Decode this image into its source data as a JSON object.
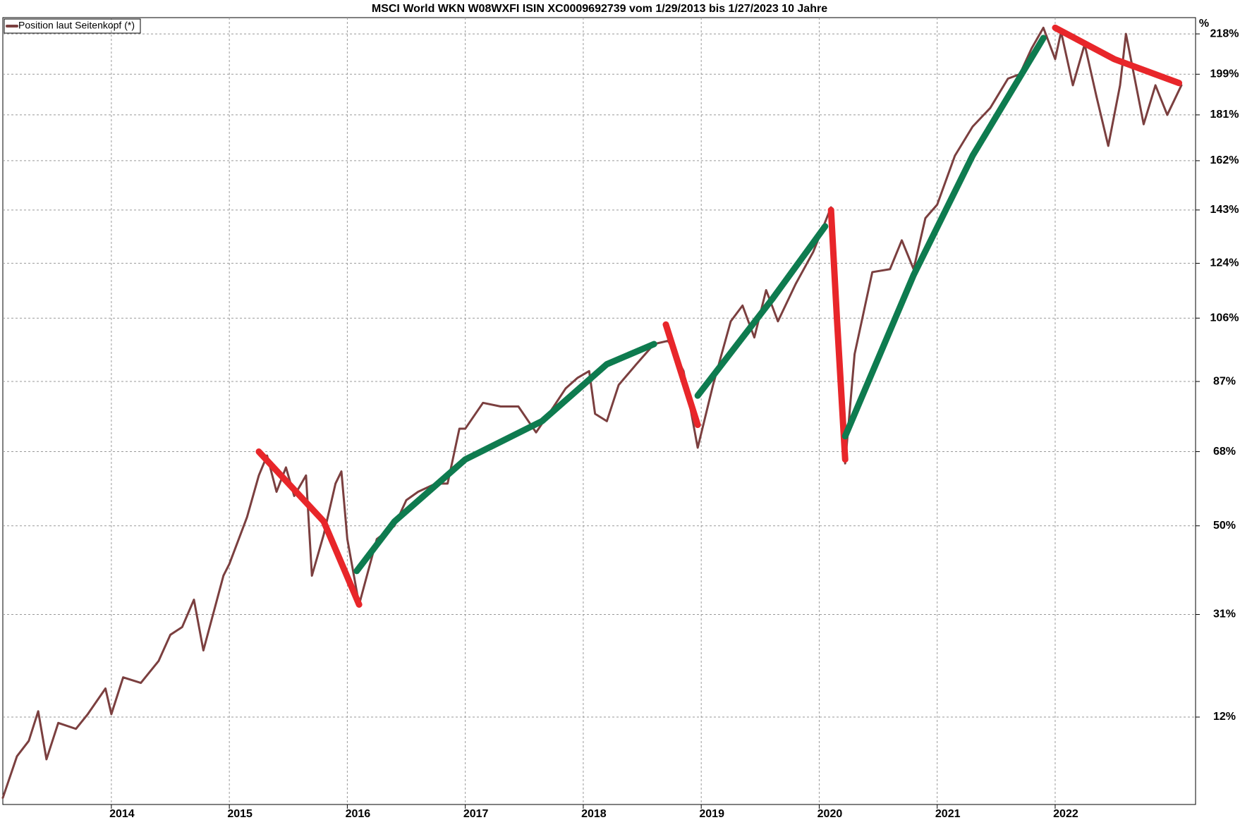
{
  "chart_data": {
    "type": "line",
    "title": "MSCI World WKN W08WXFI ISIN XC0009692739 vom 1/29/2013 bis 1/27/2023 10 Jahre",
    "y_label": "%",
    "log_scale": true,
    "grid": true,
    "legend": "top-left",
    "xlim": [
      2013.08,
      2023.19
    ],
    "xticks": [
      2014,
      2015,
      2016,
      2017,
      2018,
      2019,
      2020,
      2021,
      2022
    ],
    "ylim": [
      -2,
      226
    ],
    "yticks": [
      {
        "value": 12,
        "label": "12%"
      },
      {
        "value": 31,
        "label": "31%"
      },
      {
        "value": 50,
        "label": "50%"
      },
      {
        "value": 68,
        "label": "68%"
      },
      {
        "value": 87,
        "label": "87%"
      },
      {
        "value": 106,
        "label": "106%"
      },
      {
        "value": 124,
        "label": "124%"
      },
      {
        "value": 143,
        "label": "143%"
      },
      {
        "value": 162,
        "label": "162%"
      },
      {
        "value": 181,
        "label": "181%"
      },
      {
        "value": 199,
        "label": "199%"
      },
      {
        "value": 218,
        "label": "218%"
      }
    ],
    "series": [
      {
        "name": "Position laut Seitenkopf (*)",
        "color": "#7b3f3f",
        "width": 3,
        "x": [
          2013.08,
          2013.2,
          2013.3,
          2013.38,
          2013.45,
          2013.55,
          2013.7,
          2013.8,
          2013.95,
          2014.0,
          2014.1,
          2014.25,
          2014.4,
          2014.5,
          2014.6,
          2014.7,
          2014.78,
          2014.95,
          2015.0,
          2015.15,
          2015.25,
          2015.32,
          2015.4,
          2015.48,
          2015.55,
          2015.65,
          2015.7,
          2015.8,
          2015.9,
          2015.95,
          2016.0,
          2016.1,
          2016.25,
          2016.4,
          2016.5,
          2016.6,
          2016.75,
          2016.85,
          2016.95,
          2017.0,
          2017.15,
          2017.3,
          2017.45,
          2017.6,
          2017.75,
          2017.85,
          2017.95,
          2018.05,
          2018.1,
          2018.2,
          2018.3,
          2018.45,
          2018.6,
          2018.72,
          2018.85,
          2018.97,
          2019.1,
          2019.25,
          2019.35,
          2019.45,
          2019.55,
          2019.65,
          2019.8,
          2019.95,
          2020.1,
          2020.22,
          2020.3,
          2020.45,
          2020.6,
          2020.7,
          2020.8,
          2020.9,
          2021.0,
          2021.15,
          2021.3,
          2021.45,
          2021.6,
          2021.7,
          2021.8,
          2021.9,
          2022.0,
          2022.05,
          2022.15,
          2022.25,
          2022.35,
          2022.45,
          2022.55,
          2022.6,
          2022.75,
          2022.85,
          2022.95,
          2023.07
        ],
        "values": [
          -1,
          5.5,
          8,
          13,
          5,
          11,
          10,
          12.5,
          17,
          12.5,
          19,
          18,
          22,
          27,
          28.5,
          34,
          24,
          39,
          41.5,
          52,
          62,
          67,
          58,
          64,
          57,
          62,
          39,
          48,
          60,
          63,
          47,
          33,
          47,
          50,
          56,
          58,
          60,
          60,
          74,
          74,
          81,
          80,
          80,
          73,
          80,
          85,
          88,
          90,
          78,
          76,
          86,
          92,
          98,
          99,
          90,
          69,
          86,
          105,
          110,
          100,
          115,
          105,
          117,
          128,
          144,
          65,
          95,
          121,
          122,
          132,
          122,
          140,
          145,
          164,
          176,
          184,
          197,
          199,
          211,
          221,
          206,
          219,
          194,
          213,
          189,
          168,
          194,
          218,
          177,
          194,
          181,
          194
        ]
      },
      {
        "color": "#e8262a",
        "width": 9,
        "x": [
          2015.25,
          2015.8,
          2016.1
        ],
        "values": [
          68,
          51,
          33
        ]
      },
      {
        "color": "#0e7b4f",
        "width": 9,
        "x": [
          2016.08,
          2016.4,
          2017.0,
          2017.65,
          2018.2,
          2018.6
        ],
        "values": [
          40,
          51,
          66,
          76,
          92,
          98
        ]
      },
      {
        "color": "#e8262a",
        "width": 9,
        "x": [
          2018.7,
          2018.97
        ],
        "values": [
          104,
          75
        ]
      },
      {
        "color": "#0e7b4f",
        "width": 9,
        "x": [
          2018.97,
          2019.6,
          2020.05
        ],
        "values": [
          83,
          112,
          137
        ]
      },
      {
        "color": "#e8262a",
        "width": 9,
        "x": [
          2020.1,
          2020.15,
          2020.22
        ],
        "values": [
          143,
          106,
          66
        ]
      },
      {
        "color": "#0e7b4f",
        "width": 9,
        "x": [
          2020.22,
          2020.8,
          2021.3,
          2021.9
        ],
        "values": [
          72,
          120,
          164,
          216
        ]
      },
      {
        "color": "#e8262a",
        "width": 9,
        "x": [
          2022.0,
          2022.5,
          2023.05
        ],
        "values": [
          221,
          206,
          195
        ]
      }
    ]
  }
}
